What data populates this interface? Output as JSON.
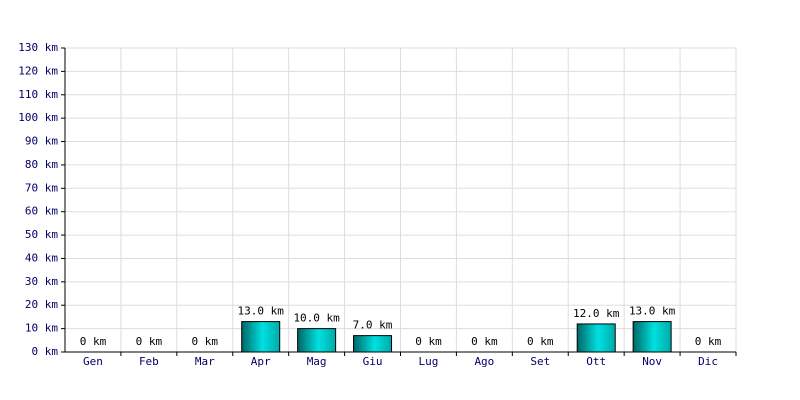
{
  "chart_data": {
    "type": "bar",
    "categories": [
      "Gen",
      "Feb",
      "Mar",
      "Apr",
      "Mag",
      "Giu",
      "Lug",
      "Ago",
      "Set",
      "Ott",
      "Nov",
      "Dic"
    ],
    "values": [
      0,
      0,
      0,
      13,
      10,
      7,
      0,
      0,
      0,
      12,
      13,
      0
    ],
    "value_labels": [
      "0 km",
      "0 km",
      "0 km",
      "13.0 km",
      "10.0 km",
      "7.0 km",
      "0 km",
      "0 km",
      "0 km",
      "12.0 km",
      "13.0 km",
      "0 km"
    ],
    "color": "#00e0e0",
    "ylim": [
      0,
      130
    ],
    "yticks": [
      {
        "value": 0,
        "label": "0 km"
      },
      {
        "value": 10,
        "label": "10 km"
      },
      {
        "value": 20,
        "label": "20 km"
      },
      {
        "value": 30,
        "label": "30 km"
      },
      {
        "value": 40,
        "label": "40 km"
      },
      {
        "value": 50,
        "label": "50 km"
      },
      {
        "value": 60,
        "label": "60 km"
      },
      {
        "value": 70,
        "label": "70 km"
      },
      {
        "value": 80,
        "label": "80 km"
      },
      {
        "value": 90,
        "label": "90 km"
      },
      {
        "value": 100,
        "label": "100 km"
      },
      {
        "value": 110,
        "label": "110 km"
      },
      {
        "value": 120,
        "label": "120 km"
      },
      {
        "value": 130,
        "label": "130 km"
      }
    ],
    "grid": true
  }
}
